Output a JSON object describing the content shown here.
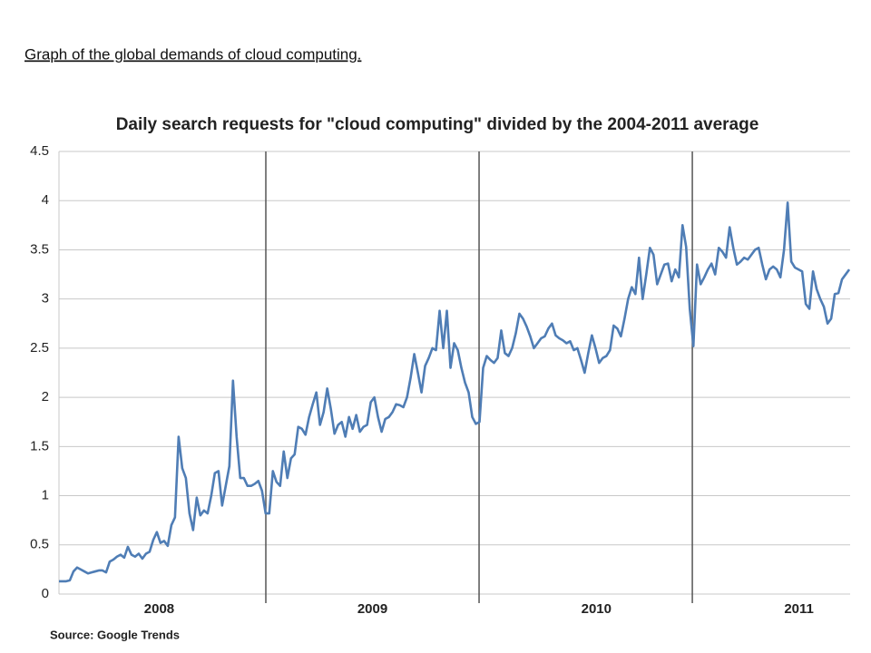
{
  "caption": "Graph of the global demands of cloud computing.",
  "chart_data": {
    "type": "line",
    "title": "Daily search requests for \"cloud computing\" divided by the 2004-2011 average",
    "source": "Source: Google Trends",
    "color": "#4f7db5",
    "grid": true,
    "ylim": [
      0,
      4.5
    ],
    "yticks": [
      0,
      0.5,
      1,
      1.5,
      2,
      2.5,
      3,
      3.5,
      4,
      4.5
    ],
    "xlim": [
      2008.03,
      2011.74
    ],
    "xticks": [
      {
        "value": 2008.5,
        "label": "2008"
      },
      {
        "value": 2009.5,
        "label": "2009"
      },
      {
        "value": 2010.55,
        "label": "2010"
      },
      {
        "value": 2011.5,
        "label": "2011"
      }
    ],
    "year_dividers": [
      2009,
      2010,
      2011
    ],
    "x": [
      2008.03,
      2008.047,
      2008.064,
      2008.081,
      2008.098,
      2008.115,
      2008.132,
      2008.149,
      2008.166,
      2008.183,
      2008.2,
      2008.217,
      2008.234,
      2008.251,
      2008.268,
      2008.285,
      2008.302,
      2008.319,
      2008.336,
      2008.353,
      2008.37,
      2008.387,
      2008.404,
      2008.421,
      2008.438,
      2008.455,
      2008.472,
      2008.489,
      2008.506,
      2008.523,
      2008.54,
      2008.557,
      2008.574,
      2008.591,
      2008.608,
      2008.625,
      2008.642,
      2008.659,
      2008.676,
      2008.693,
      2008.71,
      2008.727,
      2008.744,
      2008.761,
      2008.778,
      2008.795,
      2008.812,
      2008.829,
      2008.846,
      2008.863,
      2008.88,
      2008.897,
      2008.914,
      2008.931,
      2008.948,
      2008.965,
      2008.982,
      2008.999,
      2009.016,
      2009.033,
      2009.05,
      2009.067,
      2009.084,
      2009.101,
      2009.118,
      2009.135,
      2009.152,
      2009.169,
      2009.186,
      2009.203,
      2009.22,
      2009.237,
      2009.254,
      2009.271,
      2009.288,
      2009.305,
      2009.322,
      2009.339,
      2009.356,
      2009.373,
      2009.39,
      2009.407,
      2009.424,
      2009.441,
      2009.458,
      2009.475,
      2009.492,
      2009.509,
      2009.526,
      2009.543,
      2009.56,
      2009.577,
      2009.594,
      2009.611,
      2009.628,
      2009.645,
      2009.662,
      2009.679,
      2009.696,
      2009.713,
      2009.73,
      2009.747,
      2009.764,
      2009.781,
      2009.798,
      2009.815,
      2009.832,
      2009.849,
      2009.866,
      2009.883,
      2009.9,
      2009.917,
      2009.934,
      2009.951,
      2009.968,
      2009.985,
      2010.002,
      2010.019,
      2010.036,
      2010.053,
      2010.07,
      2010.087,
      2010.104,
      2010.121,
      2010.138,
      2010.155,
      2010.172,
      2010.189,
      2010.206,
      2010.223,
      2010.24,
      2010.257,
      2010.274,
      2010.291,
      2010.308,
      2010.325,
      2010.342,
      2010.359,
      2010.376,
      2010.393,
      2010.41,
      2010.427,
      2010.444,
      2010.461,
      2010.478,
      2010.495,
      2010.512,
      2010.529,
      2010.546,
      2010.563,
      2010.58,
      2010.597,
      2010.614,
      2010.631,
      2010.648,
      2010.665,
      2010.682,
      2010.699,
      2010.716,
      2010.733,
      2010.75,
      2010.767,
      2010.784,
      2010.801,
      2010.818,
      2010.835,
      2010.852,
      2010.869,
      2010.886,
      2010.903,
      2010.92,
      2010.937,
      2010.954,
      2010.971,
      2010.988,
      2011.005,
      2011.022,
      2011.039,
      2011.056,
      2011.073,
      2011.09,
      2011.107,
      2011.124,
      2011.141,
      2011.158,
      2011.175,
      2011.192,
      2011.209,
      2011.226,
      2011.243,
      2011.26,
      2011.277,
      2011.294,
      2011.311,
      2011.328,
      2011.345,
      2011.362,
      2011.379,
      2011.396,
      2011.413,
      2011.43,
      2011.447,
      2011.464,
      2011.481,
      2011.498,
      2011.515,
      2011.532,
      2011.549,
      2011.566,
      2011.583,
      2011.6,
      2011.617,
      2011.634,
      2011.651,
      2011.668,
      2011.685,
      2011.702,
      2011.719,
      2011.736
    ],
    "values": [
      0.13,
      0.13,
      0.13,
      0.14,
      0.23,
      0.27,
      0.25,
      0.23,
      0.21,
      0.22,
      0.23,
      0.24,
      0.24,
      0.22,
      0.33,
      0.35,
      0.38,
      0.4,
      0.37,
      0.48,
      0.4,
      0.38,
      0.41,
      0.36,
      0.41,
      0.43,
      0.55,
      0.63,
      0.52,
      0.54,
      0.49,
      0.7,
      0.78,
      1.6,
      1.28,
      1.18,
      0.82,
      0.65,
      0.98,
      0.8,
      0.85,
      0.82,
      1.0,
      1.23,
      1.25,
      0.9,
      1.1,
      1.3,
      2.17,
      1.6,
      1.18,
      1.18,
      1.1,
      1.1,
      1.12,
      1.15,
      1.05,
      0.82,
      0.82,
      1.25,
      1.14,
      1.1,
      1.45,
      1.18,
      1.38,
      1.42,
      1.7,
      1.68,
      1.62,
      1.8,
      1.93,
      2.05,
      1.72,
      1.85,
      2.09,
      1.88,
      1.63,
      1.72,
      1.75,
      1.6,
      1.8,
      1.68,
      1.82,
      1.65,
      1.7,
      1.72,
      1.95,
      2.0,
      1.8,
      1.65,
      1.78,
      1.8,
      1.85,
      1.93,
      1.92,
      1.9,
      2.0,
      2.2,
      2.44,
      2.25,
      2.05,
      2.32,
      2.4,
      2.5,
      2.48,
      2.88,
      2.5,
      2.88,
      2.3,
      2.55,
      2.48,
      2.3,
      2.15,
      2.05,
      1.8,
      1.73,
      1.75,
      2.3,
      2.42,
      2.38,
      2.35,
      2.4,
      2.68,
      2.45,
      2.42,
      2.5,
      2.65,
      2.85,
      2.8,
      2.72,
      2.62,
      2.5,
      2.55,
      2.6,
      2.62,
      2.7,
      2.75,
      2.63,
      2.6,
      2.58,
      2.55,
      2.57,
      2.48,
      2.5,
      2.38,
      2.25,
      2.45,
      2.63,
      2.5,
      2.35,
      2.4,
      2.42,
      2.48,
      2.73,
      2.7,
      2.62,
      2.8,
      3.0,
      3.12,
      3.05,
      3.42,
      3.0,
      3.25,
      3.52,
      3.45,
      3.15,
      3.25,
      3.35,
      3.36,
      3.18,
      3.3,
      3.22,
      3.75,
      3.53,
      2.9,
      2.52,
      3.35,
      3.15,
      3.22,
      3.3,
      3.36,
      3.25,
      3.52,
      3.48,
      3.42,
      3.73,
      3.52,
      3.35,
      3.38,
      3.42,
      3.4,
      3.45,
      3.5,
      3.52,
      3.35,
      3.2,
      3.3,
      3.33,
      3.3,
      3.22,
      3.5,
      3.98,
      3.38,
      3.32,
      3.3,
      3.28,
      2.95,
      2.9,
      3.28,
      3.1,
      3.0,
      2.92,
      2.75,
      2.8,
      3.05,
      3.06,
      3.2,
      3.25,
      3.3
    ]
  }
}
